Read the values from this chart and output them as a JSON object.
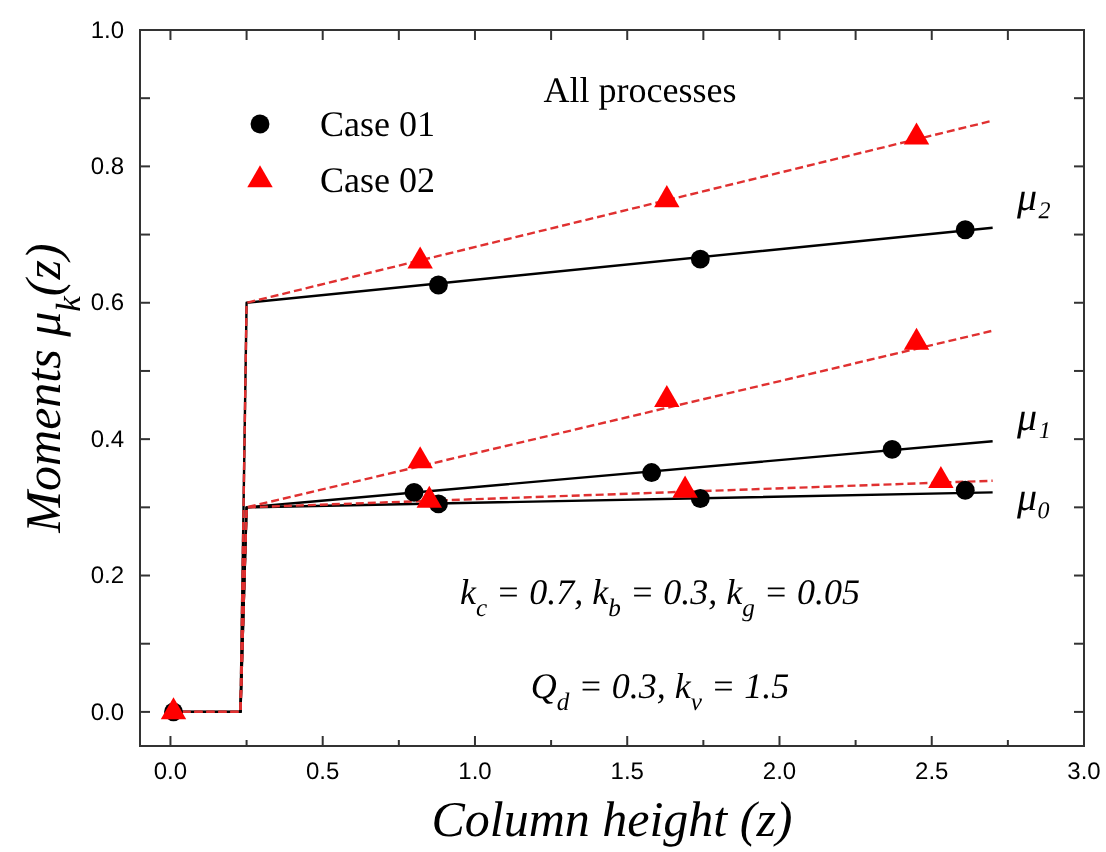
{
  "chart_data": {
    "type": "line",
    "xlabel": "Column height (z)",
    "ylabel": "Moments μ$_{k}$(z)",
    "xlim": [
      -0.1,
      3.0
    ],
    "ylim": [
      -0.05,
      1.0
    ],
    "xticks": [
      {
        "value": 0,
        "label": "0.0"
      },
      {
        "value": 0.25,
        "label": null
      },
      {
        "value": 0.5,
        "label": "0.5"
      },
      {
        "value": 0.75,
        "label": null
      },
      {
        "value": 1,
        "label": "1.0"
      },
      {
        "value": 1.25,
        "label": null
      },
      {
        "value": 1.5,
        "label": "1.5"
      },
      {
        "value": 1.75,
        "label": null
      },
      {
        "value": 2,
        "label": "2.0"
      },
      {
        "value": 2.25,
        "label": null
      },
      {
        "value": 2.5,
        "label": "2.5"
      },
      {
        "value": 2.75,
        "label": null
      },
      {
        "value": 3,
        "label": "3.0"
      }
    ],
    "yticks": [
      {
        "value": 0,
        "label": "0.0"
      },
      {
        "value": 0.1,
        "label": null
      },
      {
        "value": 0.2,
        "label": "0.2"
      },
      {
        "value": 0.3,
        "label": null
      },
      {
        "value": 0.4,
        "label": "0.4"
      },
      {
        "value": 0.5,
        "label": null
      },
      {
        "value": 0.6,
        "label": "0.6"
      },
      {
        "value": 0.7,
        "label": null
      },
      {
        "value": 0.8,
        "label": "0.8"
      },
      {
        "value": 0.9,
        "label": null
      },
      {
        "value": 1,
        "label": "1.0"
      }
    ],
    "grid": false,
    "legend": "top left",
    "annotations": [
      "All processes",
      "μ₂",
      "μ₁",
      "μ₀",
      "k$_{c}$ = 0.7, k$_{b}$ = 0.3, k$_{g}$ = 0.05",
      "Q$_{d}$ = 0.3, k$_{v}$ = 1.5"
    ],
    "series": [
      {
        "color": "#000000",
        "line_style": "solid",
        "marker": "none",
        "x": [
          0,
          0.23,
          0.25,
          2.7
        ],
        "values": [
          0,
          0,
          0.6,
          0.71
        ]
      },
      {
        "color": "#000000",
        "line_style": "solid",
        "marker": "none",
        "x": [
          0,
          0.23,
          0.25,
          2.7
        ],
        "values": [
          0,
          0,
          0.3,
          0.397
        ]
      },
      {
        "color": "#000000",
        "line_style": "solid",
        "marker": "none",
        "x": [
          0,
          0.23,
          0.25,
          2.7
        ],
        "values": [
          0,
          0,
          0.3,
          0.322
        ]
      },
      {
        "color": "#e03030",
        "line_style": "dashed",
        "marker": "none",
        "x": [
          0,
          0.23,
          0.25,
          2.7
        ],
        "values": [
          0,
          0,
          0.6,
          0.867
        ]
      },
      {
        "color": "#e03030",
        "line_style": "dashed",
        "marker": "none",
        "x": [
          0,
          0.23,
          0.25,
          2.7
        ],
        "values": [
          0,
          0,
          0.3,
          0.559
        ]
      },
      {
        "color": "#e03030",
        "line_style": "dashed",
        "marker": "none",
        "x": [
          0,
          0.23,
          0.25,
          2.7
        ],
        "values": [
          0,
          0,
          0.3,
          0.339
        ]
      },
      {
        "type": "scatter",
        "name": "Case 01",
        "color": "#000000",
        "marker": "circle",
        "x": [
          0.01,
          0.88,
          1.74,
          2.61,
          0.8,
          1.58,
          2.37,
          0.88,
          1.74,
          2.61
        ],
        "values": [
          0,
          0.626,
          0.664,
          0.707,
          0.322,
          0.351,
          0.385,
          0.305,
          0.313,
          0.325
        ]
      },
      {
        "type": "scatter",
        "name": "Case 02",
        "color": "#ff0000",
        "marker": "triangle",
        "x": [
          0.01,
          0.82,
          1.63,
          2.45,
          0.82,
          1.63,
          2.45,
          0.85,
          1.69,
          2.53
        ],
        "values": [
          0,
          0.661,
          0.751,
          0.843,
          0.368,
          0.458,
          0.542,
          0.31,
          0.325,
          0.339
        ]
      }
    ]
  }
}
